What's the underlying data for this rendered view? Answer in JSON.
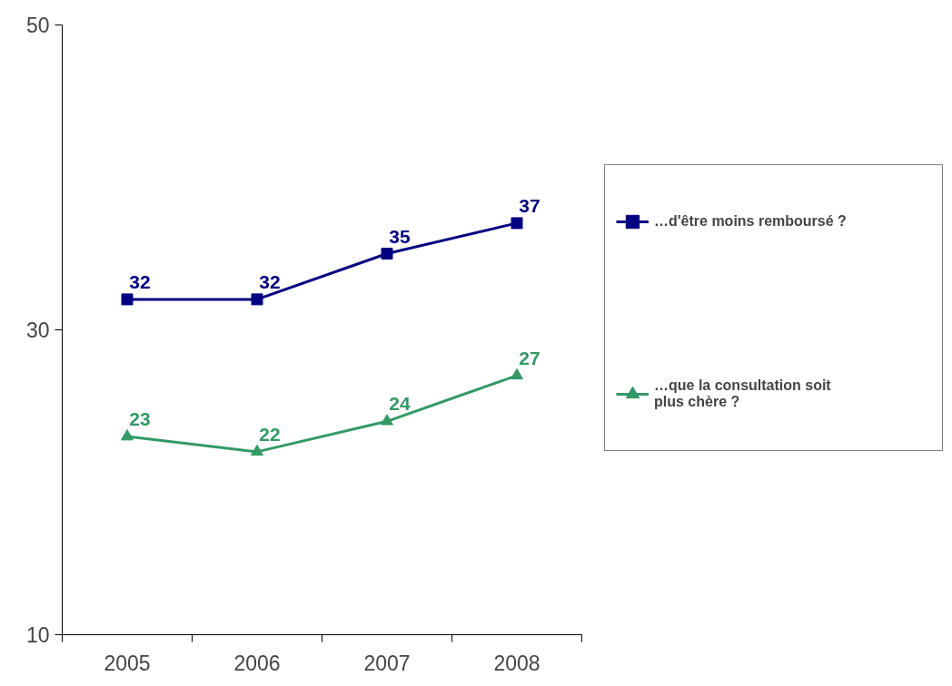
{
  "chart_data": {
    "type": "line",
    "categories": [
      "2005",
      "2006",
      "2007",
      "2008"
    ],
    "series": [
      {
        "name": "…d'être moins remboursé ?",
        "color": "#000080",
        "marker": "square",
        "values": [
          32,
          32,
          35,
          37
        ]
      },
      {
        "name": "…que la consultation soit plus chère ?",
        "color": "#339966",
        "marker": "triangle",
        "values": [
          23,
          22,
          24,
          27
        ]
      }
    ],
    "ylim": [
      10,
      50
    ],
    "yticks": [
      10,
      30,
      50
    ],
    "legend": "right",
    "data_labels": true
  }
}
